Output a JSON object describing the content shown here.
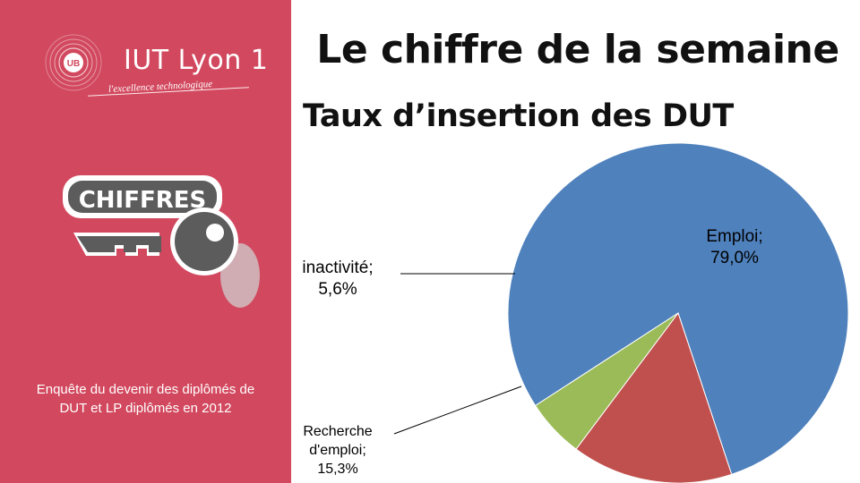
{
  "header": {
    "headline": "Le chiffre de la semaine"
  },
  "sidebar": {
    "logo_name": "IUT Lyon 1",
    "logo_emblem_text": "UB",
    "tagline": "l'excellence technologique",
    "badge_label": "CHIFFRES",
    "badge_icon": "key-icon",
    "survey_caption": "Enquête du devenir des diplômés de DUT et LP diplômés en 2012"
  },
  "colors": {
    "sidebar_bg": "#d2485e",
    "emploi": "#4f81bd",
    "recherche": "#c0504d",
    "inactivite": "#9bbb59"
  },
  "chart_data": {
    "type": "pie",
    "title": "Taux d’insertion des DUT",
    "categories": [
      "Emploi",
      "Recherche d'emploi",
      "inactivité"
    ],
    "values": [
      79.0,
      15.3,
      5.6
    ],
    "unit": "%",
    "data_labels": [
      {
        "category": "Emploi",
        "lines": [
          "Emploi;",
          "79,0%"
        ]
      },
      {
        "category": "Recherche d'emploi",
        "lines": [
          "Recherche",
          "d'emploi;",
          "15,3%"
        ]
      },
      {
        "category": "inactivité",
        "lines": [
          "inactivité;",
          "5,6%"
        ]
      }
    ],
    "legend": "none"
  }
}
